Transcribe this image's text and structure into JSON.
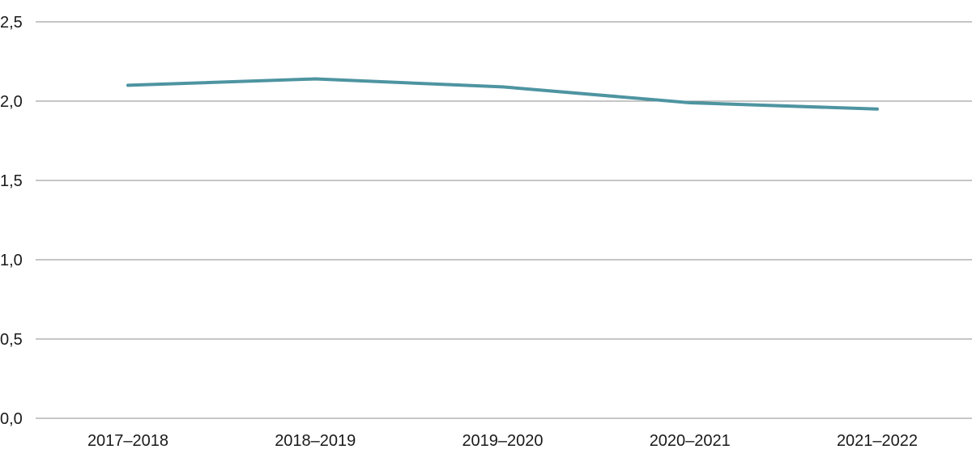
{
  "chart_data": {
    "type": "line",
    "title": "",
    "xlabel": "",
    "ylabel": "",
    "categories": [
      "2017–2018",
      "2018–2019",
      "2019–2020",
      "2020–2021",
      "2021–2022"
    ],
    "series": [
      {
        "values": [
          2.1,
          2.14,
          2.09,
          1.99,
          1.95
        ],
        "color": "#4e94a1"
      }
    ],
    "ylim": [
      0,
      2.5
    ],
    "yticks": [
      "0,0",
      "0,5",
      "1,0",
      "1,5",
      "2,0",
      "2,5"
    ],
    "grid": true,
    "legend": "none"
  }
}
